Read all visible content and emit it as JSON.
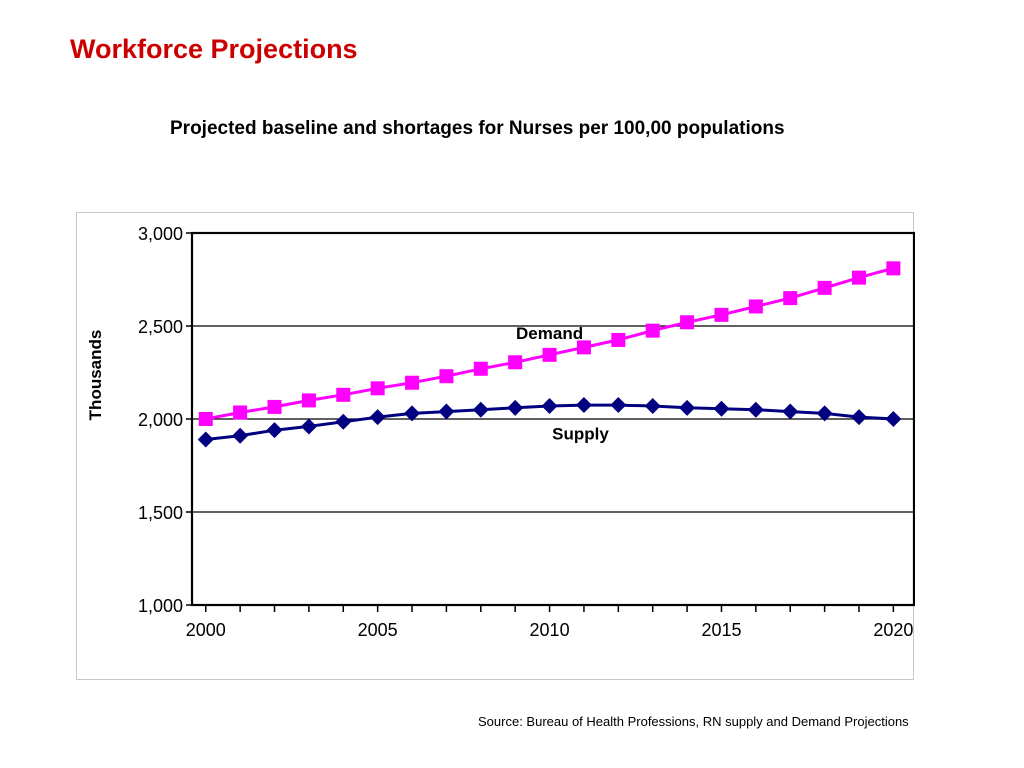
{
  "slide": {
    "title": "Workforce Projections",
    "subtitle": "Projected baseline and shortages for Nurses per 100,00 populations",
    "source": "Source: Bureau of Health Professions, RN supply and Demand Projections"
  },
  "chart_data": {
    "type": "line",
    "title": "",
    "xlabel": "",
    "ylabel": "Thousands",
    "x": [
      2000,
      2001,
      2002,
      2003,
      2004,
      2005,
      2006,
      2007,
      2008,
      2009,
      2010,
      2011,
      2012,
      2013,
      2014,
      2015,
      2016,
      2017,
      2018,
      2019,
      2020
    ],
    "xlim": [
      1999.6,
      2020.6
    ],
    "ylim": [
      1000,
      3000
    ],
    "y_ticks": [
      1000,
      1500,
      2000,
      2500,
      3000
    ],
    "y_tick_labels": [
      "1,000",
      "1,500",
      "2,000",
      "2,500",
      "3,000"
    ],
    "x_ticks": [
      2000,
      2005,
      2010,
      2015,
      2020
    ],
    "x_tick_labels": [
      "2000",
      "2005",
      "2010",
      "2015",
      "2020"
    ],
    "grid": true,
    "legend": "none",
    "series": [
      {
        "name": "Demand",
        "color": "#ff00ff",
        "marker": "square",
        "values": [
          2000,
          2035,
          2065,
          2100,
          2130,
          2165,
          2195,
          2230,
          2270,
          2305,
          2345,
          2385,
          2425,
          2475,
          2520,
          2560,
          2605,
          2650,
          2705,
          2760,
          2810
        ]
      },
      {
        "name": "Supply",
        "color": "#000080",
        "marker": "diamond",
        "values": [
          1890,
          1910,
          1940,
          1960,
          1985,
          2010,
          2030,
          2040,
          2050,
          2060,
          2070,
          2075,
          2075,
          2070,
          2060,
          2055,
          2050,
          2040,
          2030,
          2010,
          2000
        ]
      }
    ],
    "annotations": [
      {
        "text": "Demand",
        "x": 2010.0,
        "y": 2430
      },
      {
        "text": "Supply",
        "x": 2010.9,
        "y": 1890
      }
    ]
  }
}
